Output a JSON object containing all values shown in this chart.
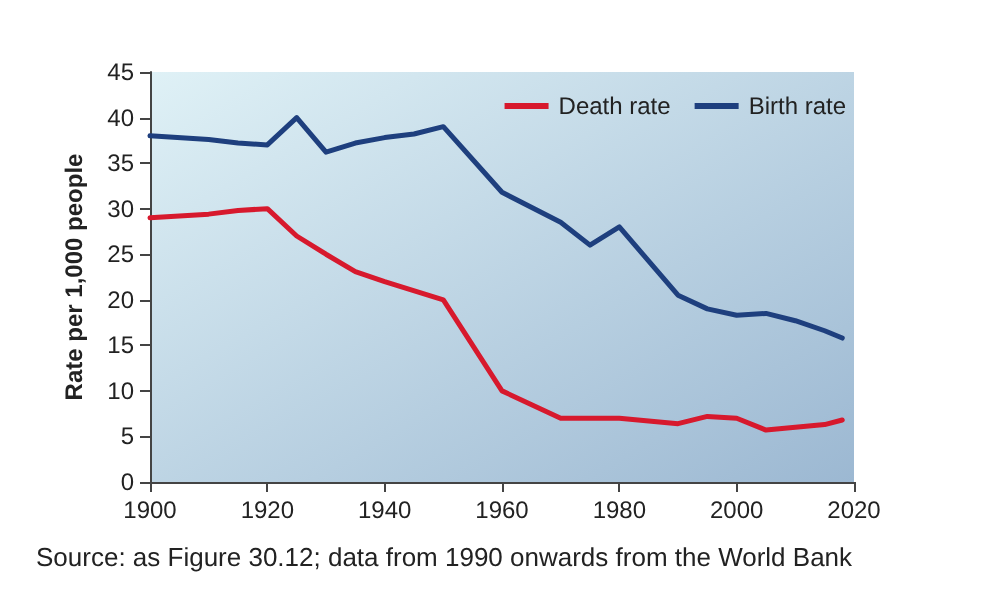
{
  "chart_data": {
    "type": "line",
    "ylabel": "Rate per 1,000 people",
    "annotations": [
      "Source: as Figure 30.12; data from 1990 onwards from the World Bank"
    ],
    "xlim": [
      1900,
      2020
    ],
    "xticks": [
      1900,
      1920,
      1940,
      1960,
      1980,
      2000,
      2020
    ],
    "ylim": [
      0,
      45
    ],
    "yticks": [
      0,
      5,
      10,
      15,
      20,
      25,
      30,
      35,
      40,
      45
    ],
    "grid": false,
    "legend": "top right",
    "marker": "none",
    "line_style": "solid",
    "series": [
      {
        "name": "Death rate",
        "color": "#d7192d",
        "x": [
          1900,
          1910,
          1915,
          1920,
          1925,
          1930,
          1935,
          1940,
          1950,
          1960,
          1970,
          1980,
          1990,
          1995,
          2000,
          2005,
          2010,
          2015,
          2018
        ],
        "values": [
          29,
          29.4,
          29.8,
          30,
          27,
          25,
          23.1,
          22,
          20,
          10,
          7,
          7,
          6.4,
          7.2,
          7,
          5.7,
          6,
          6.3,
          6.8
        ]
      },
      {
        "name": "Birth rate",
        "color": "#1e3f7e",
        "x": [
          1900,
          1910,
          1915,
          1920,
          1925,
          1930,
          1935,
          1940,
          1945,
          1950,
          1960,
          1970,
          1975,
          1980,
          1990,
          1995,
          2000,
          2005,
          2010,
          2015,
          2018
        ],
        "values": [
          38,
          37.6,
          37.2,
          37,
          40,
          36.2,
          37.2,
          37.8,
          38.2,
          39,
          31.8,
          28.5,
          26,
          28,
          20.5,
          19,
          18.3,
          18.5,
          17.7,
          16.6,
          15.8
        ]
      }
    ]
  }
}
